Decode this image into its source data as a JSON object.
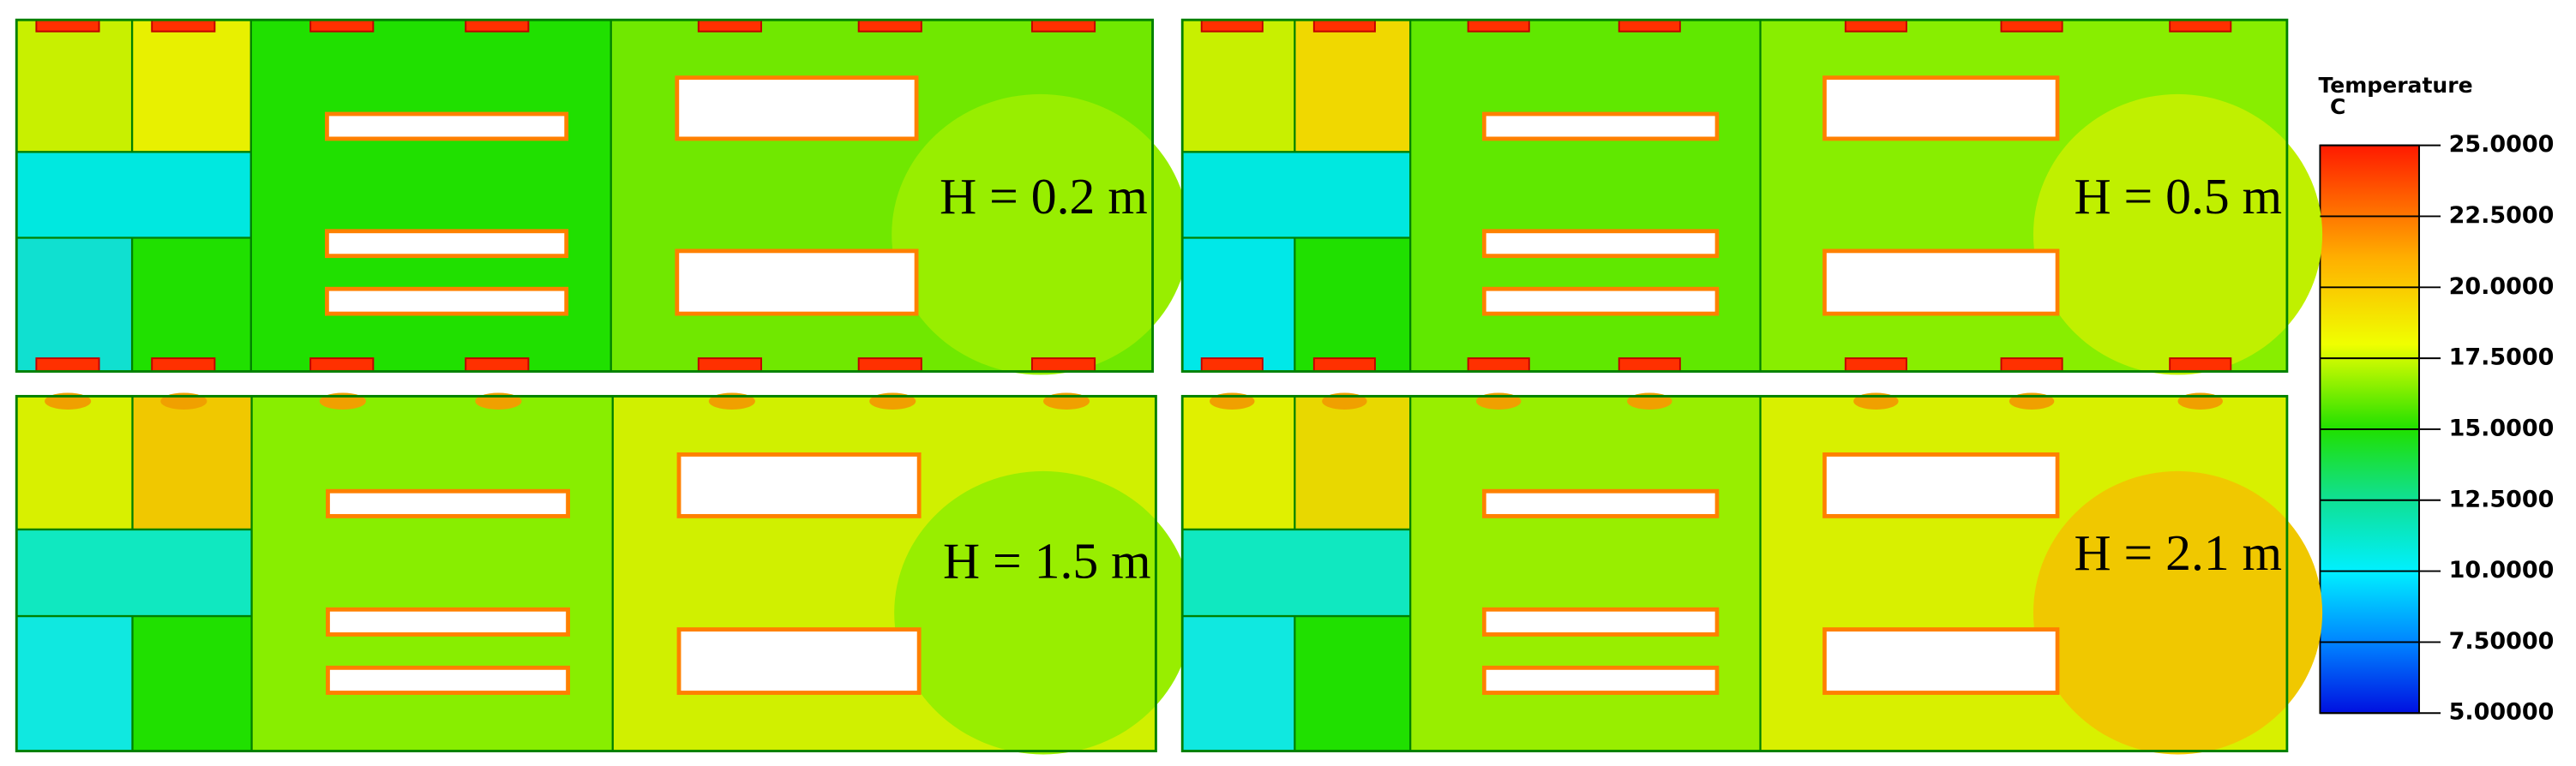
{
  "panels": [
    {
      "label": "H = 0.2 m"
    },
    {
      "label": "H = 0.5 m"
    },
    {
      "label": "H = 1.5 m"
    },
    {
      "label": "H = 2.1 m"
    }
  ],
  "legend": {
    "title": "Temperature",
    "unit": "C",
    "ticks": [
      {
        "value": 25,
        "label": "25.0000"
      },
      {
        "value": 22.5,
        "label": "22.5000"
      },
      {
        "value": 20,
        "label": "20.0000"
      },
      {
        "value": 17.5,
        "label": "17.5000"
      },
      {
        "value": 15,
        "label": "15.0000"
      },
      {
        "value": 12.5,
        "label": "12.5000"
      },
      {
        "value": 10,
        "label": "10.0000"
      },
      {
        "value": 7.5,
        "label": "7.50000"
      },
      {
        "value": 5,
        "label": "5.00000"
      }
    ]
  }
}
